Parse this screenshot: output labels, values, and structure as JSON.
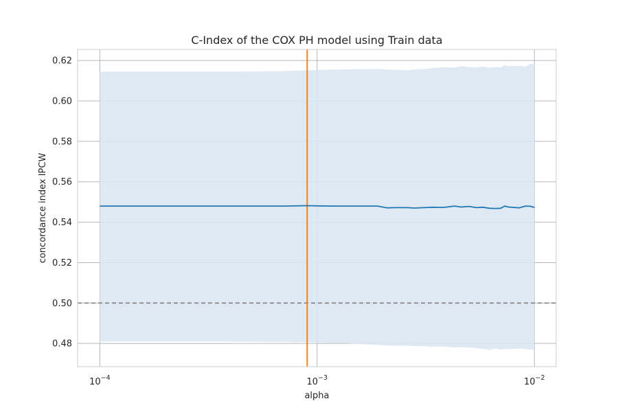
{
  "chart_data": {
    "type": "line",
    "title": "C-Index of the COX PH model using Train data",
    "xlabel": "alpha",
    "ylabel": "concordance index IPCW",
    "xscale": "log",
    "xlim": [
      7.9e-05,
      0.0126
    ],
    "ylim": [
      0.4685,
      0.6255
    ],
    "xticks": [
      {
        "value": 0.0001,
        "base": "10",
        "exp": "−4"
      },
      {
        "value": 0.001,
        "base": "10",
        "exp": "−3"
      },
      {
        "value": 0.01,
        "base": "10",
        "exp": "−2"
      }
    ],
    "yticks": [
      {
        "value": 0.48,
        "label": "0.48"
      },
      {
        "value": 0.5,
        "label": "0.50"
      },
      {
        "value": 0.52,
        "label": "0.52"
      },
      {
        "value": 0.54,
        "label": "0.54"
      },
      {
        "value": 0.56,
        "label": "0.56"
      },
      {
        "value": 0.58,
        "label": "0.58"
      },
      {
        "value": 0.6,
        "label": "0.60"
      },
      {
        "value": 0.62,
        "label": "0.62"
      }
    ],
    "grid": true,
    "series": [
      {
        "style": "line",
        "color": "#1f77b4",
        "x": [
          0.0001,
          0.0002,
          0.0004,
          0.0007,
          0.0009,
          0.001,
          0.0012,
          0.0015,
          0.0019,
          0.0021,
          0.0023,
          0.0026,
          0.0028,
          0.0031,
          0.0034,
          0.0038,
          0.0043,
          0.0046,
          0.005,
          0.0054,
          0.0058,
          0.0062,
          0.0066,
          0.007,
          0.0073,
          0.0076,
          0.0085,
          0.0091,
          0.0096,
          0.01
        ],
        "y": [
          0.548,
          0.548,
          0.548,
          0.548,
          0.5482,
          0.5481,
          0.548,
          0.548,
          0.548,
          0.5471,
          0.5472,
          0.5472,
          0.547,
          0.5472,
          0.5474,
          0.5473,
          0.548,
          0.5475,
          0.5478,
          0.5472,
          0.5474,
          0.5469,
          0.5468,
          0.5469,
          0.548,
          0.5475,
          0.5471,
          0.548,
          0.5479,
          0.5473
        ],
        "band_upper": [
          0.6145,
          0.6145,
          0.6145,
          0.6148,
          0.6152,
          0.6153,
          0.6155,
          0.6157,
          0.6158,
          0.6155,
          0.6154,
          0.6152,
          0.6155,
          0.6158,
          0.6163,
          0.6167,
          0.6165,
          0.6172,
          0.6168,
          0.6166,
          0.617,
          0.6165,
          0.6168,
          0.6166,
          0.6177,
          0.6172,
          0.6175,
          0.617,
          0.6185,
          0.618
        ],
        "band_lower": [
          0.481,
          0.481,
          0.481,
          0.4808,
          0.4806,
          0.4805,
          0.4803,
          0.4798,
          0.4793,
          0.479,
          0.4788,
          0.4789,
          0.4787,
          0.4786,
          0.4784,
          0.4785,
          0.478,
          0.4782,
          0.478,
          0.4776,
          0.4773,
          0.4768,
          0.4775,
          0.477,
          0.4772,
          0.4772,
          0.4775,
          0.4772,
          0.477,
          0.477
        ]
      }
    ],
    "reference_lines": [
      {
        "orientation": "horizontal",
        "value": 0.5,
        "style": "dashed",
        "color": "#808080"
      },
      {
        "orientation": "vertical",
        "value": 0.0009,
        "style": "solid",
        "color": "#ff7f0e"
      }
    ],
    "colors": {
      "band": "#dbe7f2",
      "grid": "#b0b7bf",
      "spine": "#cccccc",
      "text": "#262626"
    }
  }
}
